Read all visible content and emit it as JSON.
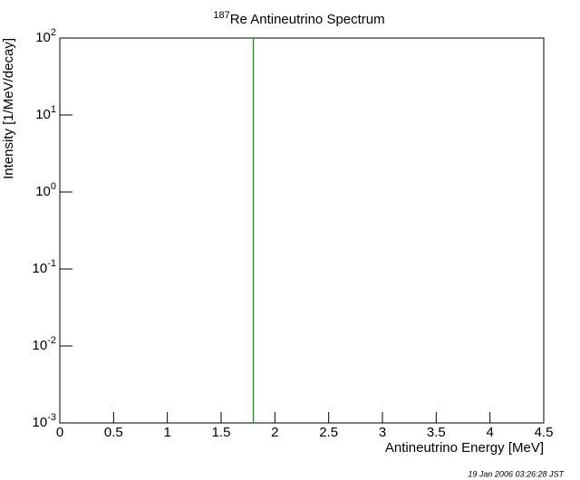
{
  "chart_data": {
    "type": "line",
    "title_sup": "187",
    "title": "Re Antineutrino Spectrum",
    "x_label": "Antineutrino Energy [MeV]",
    "y_label": "Intensity [1/MeV/decay]",
    "timestamp": "19 Jan 2006 03:26:28 JST",
    "xlim": [
      0,
      4.5
    ],
    "xticks": [
      0,
      0.5,
      1,
      1.5,
      2,
      2.5,
      3,
      3.5,
      4,
      4.5
    ],
    "ylim": [
      0.001,
      100
    ],
    "y_log": true,
    "yticks": [
      {
        "value": 0.001,
        "label": "10",
        "exp": "-3"
      },
      {
        "value": 0.01,
        "label": "10",
        "exp": "-2"
      },
      {
        "value": 0.1,
        "label": "10",
        "exp": "-1"
      },
      {
        "value": 1,
        "label": "10",
        "exp": "0"
      },
      {
        "value": 10,
        "label": "10",
        "exp": "1"
      },
      {
        "value": 100,
        "label": "10",
        "exp": "2"
      }
    ],
    "vlines": [
      {
        "x": 1.8,
        "color": "#00a000"
      }
    ]
  }
}
